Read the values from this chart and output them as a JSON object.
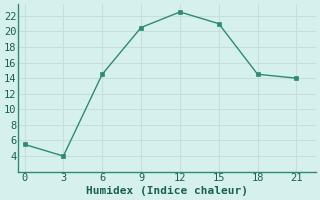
{
  "x": [
    0,
    3,
    6,
    9,
    12,
    15,
    18,
    21
  ],
  "y": [
    5.5,
    4.0,
    14.5,
    20.5,
    22.5,
    21.0,
    14.5,
    14.0
  ],
  "xlabel": "Humidex (Indice chaleur)",
  "xlim": [
    -0.5,
    22.5
  ],
  "ylim": [
    2,
    23.5
  ],
  "xticks": [
    0,
    3,
    6,
    9,
    12,
    15,
    18,
    21
  ],
  "yticks": [
    4,
    6,
    8,
    10,
    12,
    14,
    16,
    18,
    20,
    22
  ],
  "line_color": "#2e8b73",
  "marker_color": "#2e8b73",
  "bg_color": "#d6f0ee",
  "grid_color": "#c8dedd",
  "spine_color": "#2e8b73",
  "axis_label_color": "#1a5f52",
  "tick_color": "#1a5f52",
  "xlabel_fontsize": 8,
  "tick_fontsize": 7.5
}
